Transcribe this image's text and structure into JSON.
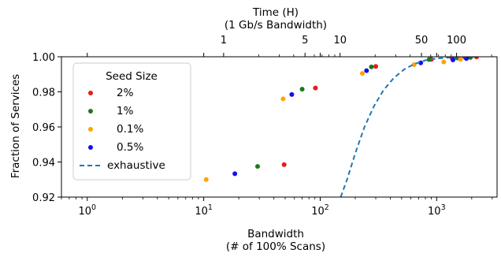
{
  "chart_data": {
    "type": "scatter",
    "xlabel_line1": "Bandwidth",
    "xlabel_line2": "(# of 100% Scans)",
    "ylabel": "Fraction of Services",
    "top_xlabel_line1": "Time (H)",
    "top_xlabel_line2": "(1 Gb/s Bandwidth)",
    "x_scale": "log",
    "xlim": [
      0.6,
      3300
    ],
    "ylim": [
      0.92,
      1.0
    ],
    "x_tick_labels": [
      "10^0",
      "10^1",
      "10^2",
      "10^3"
    ],
    "x_tick_values": [
      1,
      10,
      100,
      1000
    ],
    "y_tick_values": [
      0.92,
      0.94,
      0.96,
      0.98,
      1.0
    ],
    "y_tick_labels": [
      "0.92",
      "0.94",
      "0.96",
      "0.98",
      "1.00"
    ],
    "top_tick_labels": [
      "1",
      "5",
      "10",
      "50",
      "100"
    ],
    "top_tick_hours": [
      1,
      5,
      10,
      50,
      100
    ],
    "grid": false,
    "legend": {
      "title": "Seed Size",
      "placement": "top-left"
    },
    "series": [
      {
        "name": "2%",
        "color": "#e8191c",
        "kind": "scatter",
        "points": [
          [
            49,
            0.9385
          ],
          [
            91,
            0.9822
          ],
          [
            300,
            0.9945
          ],
          [
            900,
            0.9985
          ],
          [
            1350,
            0.9994
          ],
          [
            1750,
            0.9997
          ],
          [
            2200,
            0.9999
          ]
        ]
      },
      {
        "name": "1%",
        "color": "#1a7a1a",
        "kind": "scatter",
        "points": [
          [
            29,
            0.9375
          ],
          [
            70,
            0.9815
          ],
          [
            275,
            0.9942
          ],
          [
            860,
            0.9984
          ],
          [
            1500,
            0.9993
          ],
          [
            1950,
            0.9996
          ]
        ]
      },
      {
        "name": "0.1%",
        "color": "#ffa500",
        "kind": "scatter",
        "points": [
          [
            10.5,
            0.93
          ],
          [
            48,
            0.976
          ],
          [
            230,
            0.9905
          ],
          [
            640,
            0.9955
          ],
          [
            1150,
            0.997
          ],
          [
            1600,
            0.9985
          ]
        ]
      },
      {
        "name": "0.5%",
        "color": "#1010ee",
        "kind": "scatter",
        "points": [
          [
            18.5,
            0.9333
          ],
          [
            57,
            0.9785
          ],
          [
            250,
            0.9921
          ],
          [
            730,
            0.9965
          ],
          [
            1380,
            0.9982
          ],
          [
            1800,
            0.999
          ]
        ]
      },
      {
        "name": "exhaustive",
        "color": "#1f77b4",
        "kind": "dashed-line",
        "points": [
          [
            150,
            0.92
          ],
          [
            170,
            0.93
          ],
          [
            200,
            0.945
          ],
          [
            240,
            0.96
          ],
          [
            290,
            0.972
          ],
          [
            350,
            0.981
          ],
          [
            430,
            0.988
          ],
          [
            530,
            0.993
          ],
          [
            650,
            0.996
          ],
          [
            800,
            0.998
          ],
          [
            1000,
            0.999
          ],
          [
            1300,
            0.9996
          ],
          [
            1700,
            0.9999
          ],
          [
            2200,
            1.0
          ]
        ]
      }
    ]
  }
}
